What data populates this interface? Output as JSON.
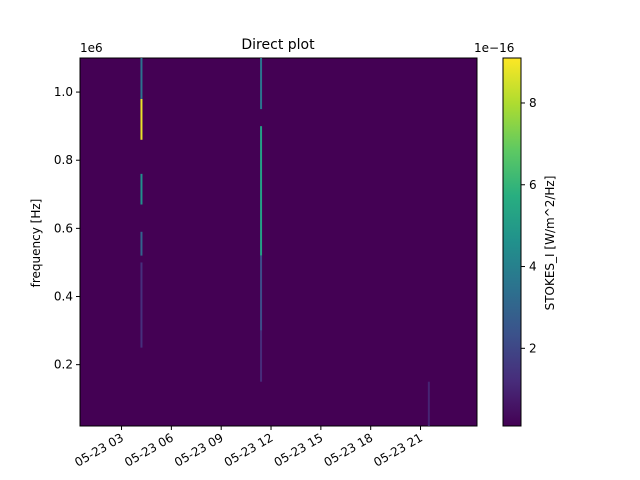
{
  "chart_data": {
    "type": "heatmap",
    "title": "Direct plot",
    "xlabel": "",
    "ylabel": "frequency [Hz]",
    "y_offset_label": "1e6",
    "y_ticks": [
      0.2,
      0.4,
      0.6,
      0.8,
      1.0
    ],
    "y_tick_labels": [
      "0.2",
      "0.4",
      "0.6",
      "0.8",
      "1.0"
    ],
    "ylim": [
      0.02,
      1.1
    ],
    "x_tick_labels": [
      "05-23 03",
      "05-23 06",
      "05-23 09",
      "05-23 12",
      "05-23 15",
      "05-23 18",
      "05-23 21"
    ],
    "x_tick_hours": [
      3,
      6,
      9,
      12,
      15,
      18,
      21
    ],
    "xlim_hours": [
      0.5,
      24.4
    ],
    "background_color": "#440154",
    "colorbar": {
      "label": "STOKES_I [W/m^2/Hz]",
      "offset_label": "1e−16",
      "ticks": [
        2,
        4,
        6,
        8
      ],
      "tick_labels": [
        "2",
        "4",
        "6",
        "8"
      ],
      "range": [
        0.1,
        9.1
      ],
      "colormap": "viridis"
    },
    "bursts": [
      {
        "hour": 4.2,
        "segments": [
          {
            "f0": 0.86,
            "f1": 0.98,
            "value": 8.8
          },
          {
            "f0": 0.98,
            "f1": 1.1,
            "value": 3.5
          },
          {
            "f0": 0.67,
            "f1": 0.76,
            "value": 4.6
          },
          {
            "f0": 0.52,
            "f1": 0.59,
            "value": 3.0
          },
          {
            "f0": 0.25,
            "f1": 0.5,
            "value": 1.3
          }
        ]
      },
      {
        "hour": 11.4,
        "segments": [
          {
            "f0": 0.95,
            "f1": 1.1,
            "value": 3.6
          },
          {
            "f0": 0.52,
            "f1": 0.9,
            "value": 5.2
          },
          {
            "f0": 0.3,
            "f1": 0.52,
            "value": 2.2
          },
          {
            "f0": 0.15,
            "f1": 0.3,
            "value": 1.2
          }
        ]
      },
      {
        "hour": 21.5,
        "segments": [
          {
            "f0": 0.02,
            "f1": 0.15,
            "value": 1.0
          }
        ]
      }
    ]
  }
}
